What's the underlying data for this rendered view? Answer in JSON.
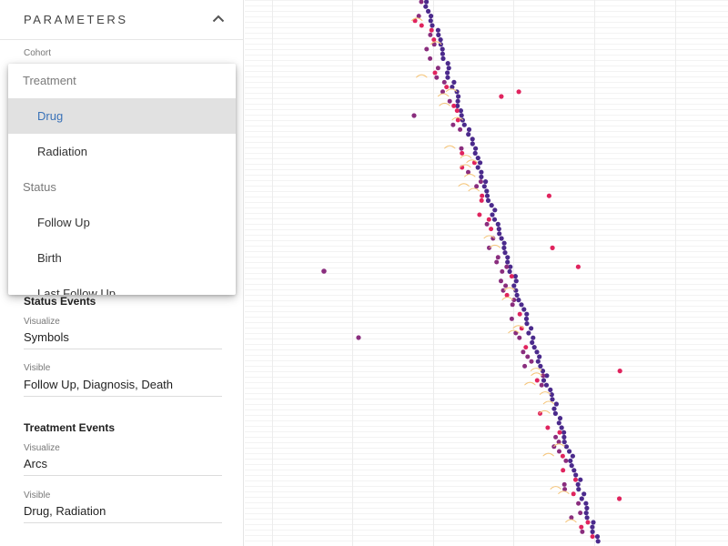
{
  "parameters": {
    "title": "PARAMETERS",
    "collapse_icon": "chevron-up-icon"
  },
  "cohort": {
    "label": "Cohort",
    "dropdown": {
      "groups": [
        {
          "label": "Treatment",
          "items": [
            "Drug",
            "Radiation"
          ]
        },
        {
          "label": "Status",
          "items": [
            "Follow Up",
            "Birth",
            "Last Follow Up"
          ]
        }
      ],
      "selected": "Drug"
    }
  },
  "status_events": {
    "title": "Status Events",
    "visualize_label": "Visualize",
    "visualize_value": "Symbols",
    "visible_label": "Visible",
    "visible_value": "Follow Up, Diagnosis, Death"
  },
  "treatment_events": {
    "title": "Treatment Events",
    "visualize_label": "Visualize",
    "visualize_value": "Arcs",
    "visible_label": "Visible",
    "visible_value": "Drug, Radiation"
  },
  "colors": {
    "primary_event": "#4b2a8c",
    "secondary_event": "#8a2d7e",
    "death_event": "#e0245e",
    "arc": "#f5c57a",
    "selected_text": "#3a72b8"
  }
}
